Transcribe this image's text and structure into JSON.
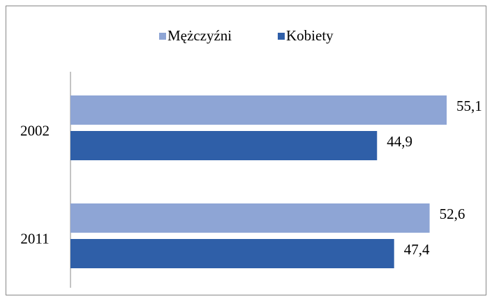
{
  "chart_data": {
    "type": "bar",
    "orientation": "horizontal",
    "categories": [
      "2002",
      "2011"
    ],
    "series": [
      {
        "name": "Mężczyźni",
        "color": "#8ea5d5",
        "values": [
          55.1,
          52.6
        ],
        "value_labels": [
          "55,1",
          "52,6"
        ]
      },
      {
        "name": "Kobiety",
        "color": "#2f5fa8",
        "values": [
          44.9,
          47.4
        ],
        "value_labels": [
          "44,9",
          "47,4"
        ]
      }
    ],
    "xlim": [
      0,
      60
    ],
    "legend": "top"
  }
}
